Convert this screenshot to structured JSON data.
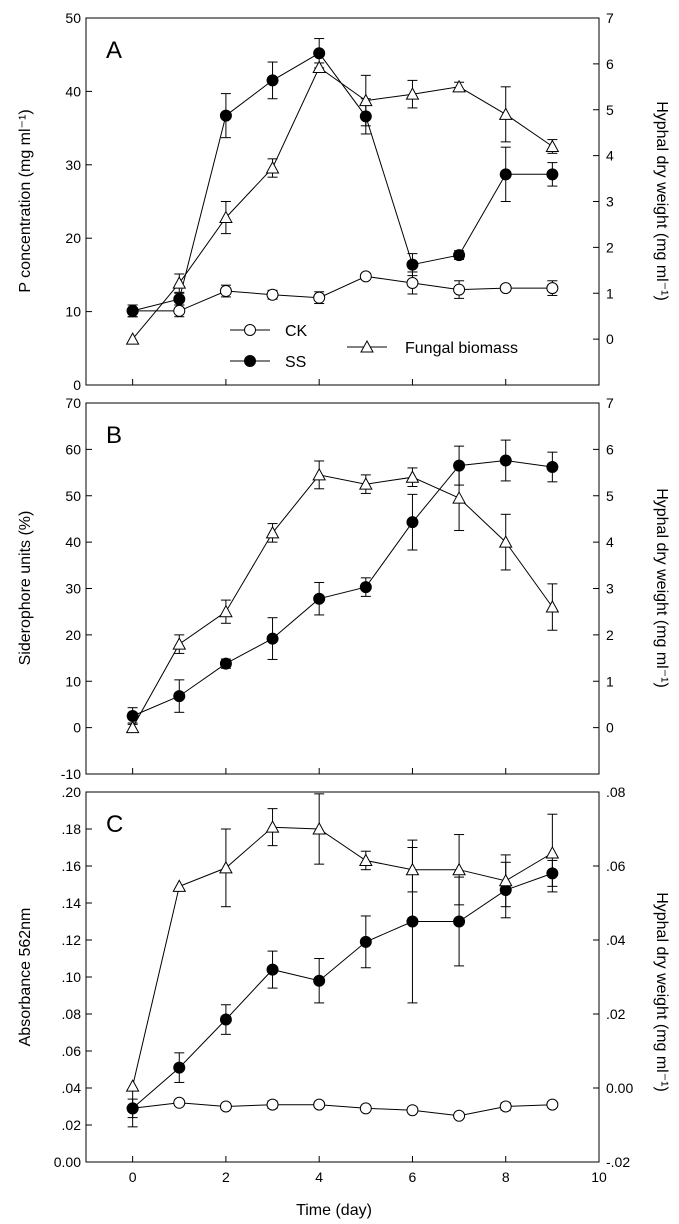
{
  "chart_data": [
    {
      "type": "line",
      "panel_label": "A",
      "ylabel": "P concentration (mg ml⁻¹)",
      "y2label": "Hyphal dry weight (mg ml⁻¹)",
      "xlim": [
        -1,
        10
      ],
      "ylim": [
        0,
        50
      ],
      "y2lim": [
        -1,
        7
      ],
      "yticks": [
        "0",
        "10",
        "20",
        "30",
        "40",
        "50"
      ],
      "y2ticks": [
        "0",
        "1",
        "2",
        "3",
        "4",
        "5",
        "6",
        "7"
      ],
      "legend": {
        "placement": "bottom-center",
        "ck": "CK",
        "ss": "SS",
        "fungal": "Fungal biomass"
      },
      "series": [
        {
          "name": "CK",
          "axis": "left",
          "x": [
            0,
            1,
            2,
            3,
            4,
            5,
            6,
            7,
            8,
            9
          ],
          "y": [
            10.1,
            10.1,
            12.8,
            12.3,
            11.9,
            14.8,
            13.9,
            13.0,
            13.2,
            13.2
          ],
          "err": [
            0.8,
            0.8,
            0.8,
            0.6,
            0.8,
            0.4,
            1.5,
            1.2,
            0.4,
            1.0
          ]
        },
        {
          "name": "SS",
          "axis": "left",
          "x": [
            0,
            1,
            2,
            3,
            4,
            5,
            6,
            7,
            8,
            9
          ],
          "y": [
            10.1,
            11.7,
            36.7,
            41.5,
            45.2,
            36.6,
            16.4,
            17.7,
            28.7,
            28.7
          ],
          "err": [
            0.8,
            0.8,
            3.0,
            2.5,
            2.0,
            2.4,
            1.5,
            0.6,
            3.7,
            1.6
          ]
        },
        {
          "name": "Fungal biomass",
          "axis": "right",
          "x": [
            0,
            1,
            2,
            3,
            4,
            5,
            6,
            7,
            8,
            9
          ],
          "y": [
            0.0,
            1.22,
            2.65,
            3.73,
            5.92,
            5.2,
            5.34,
            5.5,
            4.9,
            4.2
          ],
          "err": [
            0,
            0.2,
            0.35,
            0.2,
            0.1,
            0.55,
            0.3,
            0.1,
            0.6,
            0.15
          ]
        }
      ]
    },
    {
      "type": "line",
      "panel_label": "B",
      "ylabel": "Siderophore units (%)",
      "y2label": "Hyphal dry weight (mg ml⁻¹)",
      "xlim": [
        -1,
        10
      ],
      "ylim": [
        -10,
        70
      ],
      "y2lim": [
        -1,
        7
      ],
      "yticks": [
        "-10",
        "0",
        "10",
        "20",
        "30",
        "40",
        "50",
        "60",
        "70"
      ],
      "y2ticks": [
        "0",
        "1",
        "2",
        "3",
        "4",
        "5",
        "6",
        "7"
      ],
      "series": [
        {
          "name": "SS",
          "axis": "left",
          "x": [
            0,
            1,
            2,
            3,
            4,
            5,
            6,
            7,
            8,
            9
          ],
          "y": [
            2.5,
            6.8,
            13.8,
            19.2,
            27.8,
            30.3,
            44.3,
            56.5,
            57.6,
            56.2
          ],
          "err": [
            1.8,
            3.5,
            1.0,
            4.5,
            3.5,
            2.0,
            6.0,
            4.2,
            4.4,
            3.2
          ]
        },
        {
          "name": "Fungal biomass",
          "axis": "right",
          "x": [
            0,
            1,
            2,
            3,
            4,
            5,
            6,
            7,
            8,
            9
          ],
          "y": [
            0.0,
            1.8,
            2.5,
            4.2,
            5.45,
            5.25,
            5.4,
            4.95,
            4.0,
            2.6
          ],
          "err": [
            0.1,
            0.2,
            0.25,
            0.2,
            0.3,
            0.2,
            0.2,
            0.7,
            0.6,
            0.5
          ]
        }
      ]
    },
    {
      "type": "line",
      "panel_label": "C",
      "ylabel": "Absorbance 562nm",
      "y2label": "Hyphal dry weight (mg ml⁻¹)",
      "xlabel": "Time (day)",
      "xlim": [
        -1,
        10
      ],
      "ylim": [
        0,
        0.2
      ],
      "y2lim": [
        -0.02,
        0.08
      ],
      "yticks": [
        "0.00",
        ".02",
        ".04",
        ".06",
        ".08",
        ".10",
        ".12",
        ".14",
        ".16",
        ".18",
        ".20"
      ],
      "y2ticks": [
        "-.02",
        "0.00",
        ".02",
        ".04",
        ".06",
        ".08"
      ],
      "xticks": [
        "0",
        "2",
        "4",
        "6",
        "8",
        "10"
      ],
      "series": [
        {
          "name": "CK",
          "axis": "left",
          "x": [
            0,
            1,
            2,
            3,
            4,
            5,
            6,
            7,
            8,
            9
          ],
          "y": [
            0.029,
            0.032,
            0.03,
            0.031,
            0.031,
            0.029,
            0.028,
            0.025,
            0.03,
            0.031
          ],
          "err": [
            0.01,
            0,
            0,
            0.002,
            0,
            0,
            0,
            0,
            0.002,
            0
          ]
        },
        {
          "name": "SS",
          "axis": "left",
          "x": [
            0,
            1,
            2,
            3,
            4,
            5,
            6,
            7,
            8,
            9
          ],
          "y": [
            0.029,
            0.051,
            0.077,
            0.104,
            0.098,
            0.119,
            0.13,
            0.13,
            0.147,
            0.156
          ],
          "err": [
            0.005,
            0.008,
            0.008,
            0.01,
            0.012,
            0.014,
            0.044,
            0.024,
            0.015,
            0.007
          ]
        },
        {
          "name": "Fungal biomass",
          "axis": "right",
          "x": [
            0,
            1,
            2,
            3,
            4,
            5,
            6,
            7,
            8,
            9
          ],
          "y": [
            0.0005,
            0.0545,
            0.0595,
            0.0705,
            0.07,
            0.0615,
            0.059,
            0.059,
            0.056,
            0.0635
          ],
          "err": [
            0,
            0,
            0.0105,
            0.005,
            0.0095,
            0.0025,
            0.006,
            0.0095,
            0.007,
            0.0105
          ]
        }
      ]
    }
  ]
}
